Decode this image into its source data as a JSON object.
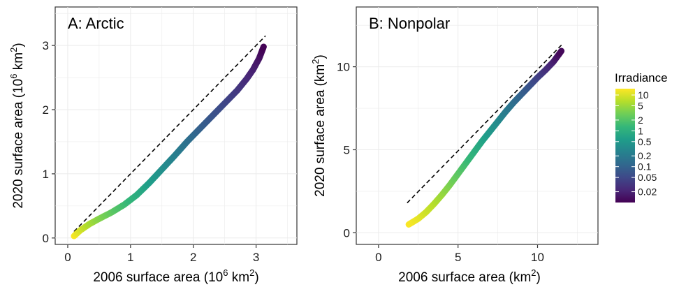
{
  "chart_data": [
    {
      "panel": "A",
      "type": "line",
      "title": "A: Arctic",
      "xlabel": {
        "prefix": "2006 surface area (10",
        "exp1": "6",
        "mid": " km",
        "exp2": "2",
        "suffix": ")"
      },
      "ylabel": {
        "prefix": "2020 surface area (10",
        "exp1": "6",
        "mid": " km",
        "exp2": "2",
        "suffix": ")"
      },
      "xlim": [
        -0.2,
        3.65
      ],
      "ylim": [
        -0.1,
        3.6
      ],
      "xticks": [
        0,
        1,
        2,
        3
      ],
      "yticks": [
        0,
        1,
        2,
        3
      ],
      "grid": true,
      "reference_line": {
        "style": "dashed",
        "color": "#000000",
        "x": [
          0.1,
          3.15
        ],
        "y": [
          0.1,
          3.15
        ]
      },
      "series": [
        {
          "x": [
            0.1,
            0.2,
            0.35,
            0.5,
            0.7,
            0.9,
            1.1,
            1.3,
            1.5,
            1.7,
            1.9,
            2.1,
            2.3,
            2.5,
            2.7,
            2.85,
            2.95,
            3.05,
            3.12
          ],
          "y": [
            0.03,
            0.12,
            0.22,
            0.3,
            0.4,
            0.52,
            0.67,
            0.86,
            1.07,
            1.28,
            1.5,
            1.7,
            1.9,
            2.1,
            2.3,
            2.48,
            2.62,
            2.8,
            2.98
          ],
          "irradiance": [
            15,
            10,
            6,
            4,
            2.5,
            1.6,
            1,
            0.6,
            0.4,
            0.25,
            0.16,
            0.1,
            0.07,
            0.05,
            0.035,
            0.025,
            0.02,
            0.015,
            0.01
          ]
        }
      ]
    },
    {
      "panel": "B",
      "type": "line",
      "title": "B: Nonpolar",
      "xlabel": {
        "prefix": "2006 surface area (km",
        "exp1": "2",
        "suffix": ")"
      },
      "ylabel": {
        "prefix": "2020 surface area (km",
        "exp1": "2",
        "suffix": ")"
      },
      "xlim": [
        -1.4,
        13.8
      ],
      "ylim": [
        -0.7,
        13.6
      ],
      "xticks": [
        0,
        5,
        10
      ],
      "yticks": [
        0,
        5,
        10
      ],
      "grid": true,
      "reference_line": {
        "style": "dashed",
        "color": "#000000",
        "x": [
          1.8,
          11.6
        ],
        "y": [
          1.8,
          11.4
        ]
      },
      "series": [
        {
          "x": [
            1.9,
            2.5,
            3.0,
            3.5,
            4.0,
            4.5,
            5.0,
            5.5,
            6.0,
            6.5,
            7.0,
            7.5,
            8.0,
            8.5,
            9.0,
            9.5,
            10.0,
            10.5,
            11.0,
            11.5
          ],
          "y": [
            0.5,
            0.85,
            1.25,
            1.75,
            2.3,
            2.9,
            3.55,
            4.2,
            4.85,
            5.5,
            6.1,
            6.7,
            7.3,
            7.85,
            8.35,
            8.85,
            9.35,
            9.8,
            10.3,
            10.95
          ],
          "irradiance": [
            15,
            12,
            9,
            7,
            5,
            3.5,
            2.4,
            1.6,
            1.1,
            0.75,
            0.5,
            0.35,
            0.22,
            0.15,
            0.1,
            0.07,
            0.045,
            0.03,
            0.02,
            0.011
          ]
        }
      ]
    }
  ],
  "legend": {
    "title": "Irradiance",
    "scale": "log",
    "range": [
      0.01,
      15
    ],
    "ticks": [
      "10",
      "5",
      "2",
      "1",
      "0.5",
      "0.2",
      "0.1",
      "0.05",
      "0.02"
    ],
    "tick_values": [
      10,
      5,
      2,
      1,
      0.5,
      0.2,
      0.1,
      0.05,
      0.02
    ],
    "colors": [
      "#440154",
      "#482878",
      "#3e4989",
      "#31688e",
      "#26828e",
      "#1f9e89",
      "#35b779",
      "#6ece58",
      "#b5de2b",
      "#fde725"
    ]
  }
}
